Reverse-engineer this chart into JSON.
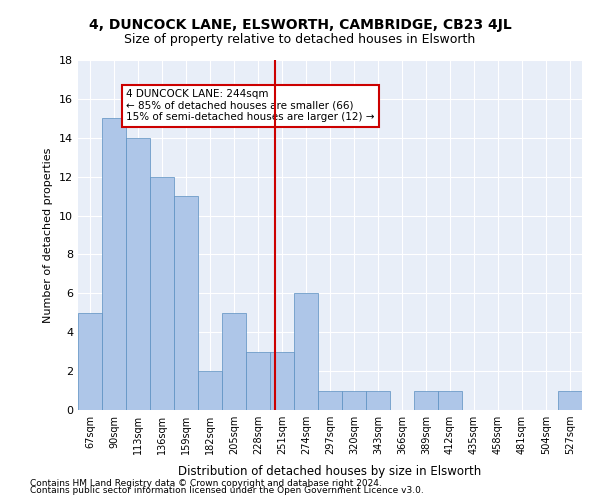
{
  "title": "4, DUNCOCK LANE, ELSWORTH, CAMBRIDGE, CB23 4JL",
  "subtitle": "Size of property relative to detached houses in Elsworth",
  "xlabel": "Distribution of detached houses by size in Elsworth",
  "ylabel": "Number of detached properties",
  "categories": [
    "67sqm",
    "90sqm",
    "113sqm",
    "136sqm",
    "159sqm",
    "182sqm",
    "205sqm",
    "228sqm",
    "251sqm",
    "274sqm",
    "297sqm",
    "320sqm",
    "343sqm",
    "366sqm",
    "389sqm",
    "412sqm",
    "435sqm",
    "458sqm",
    "481sqm",
    "504sqm",
    "527sqm"
  ],
  "values": [
    5,
    15,
    14,
    12,
    11,
    2,
    5,
    3,
    3,
    6,
    1,
    1,
    1,
    0,
    1,
    1,
    0,
    0,
    0,
    0,
    1
  ],
  "bar_color": "#aec6e8",
  "bar_edge_color": "#5a8fc0",
  "vline_x_label": "251sqm",
  "vline_x_index": 8.0,
  "vline_color": "#cc0000",
  "annotation_text": "4 DUNCOCK LANE: 244sqm\n← 85% of detached houses are smaller (66)\n15% of semi-detached houses are larger (12) →",
  "annotation_box_color": "#cc0000",
  "ylim": [
    0,
    18
  ],
  "yticks": [
    0,
    2,
    4,
    6,
    8,
    10,
    12,
    14,
    16,
    18
  ],
  "bg_color": "#e8eef8",
  "grid_color": "#ffffff",
  "footer_line1": "Contains HM Land Registry data © Crown copyright and database right 2024.",
  "footer_line2": "Contains public sector information licensed under the Open Government Licence v3.0."
}
